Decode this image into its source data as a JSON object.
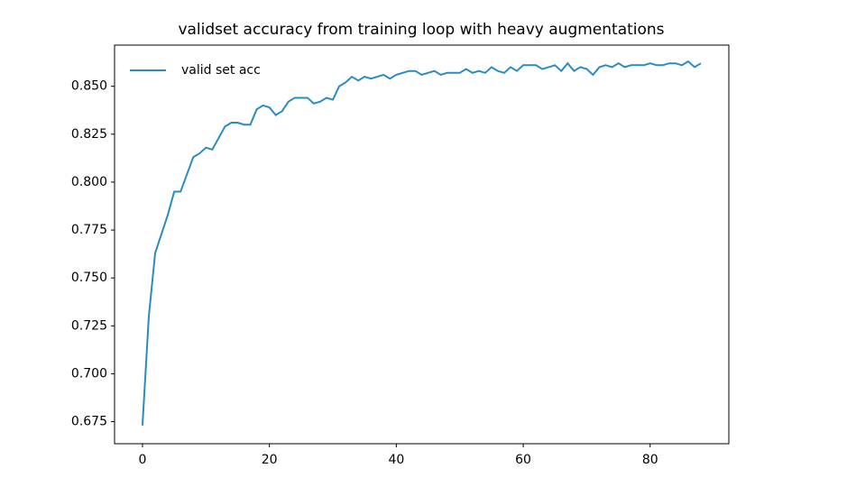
{
  "chart_data": {
    "type": "line",
    "title": "validset accuracy from training loop with heavy augmentations",
    "x": [
      0,
      1,
      2,
      3,
      4,
      5,
      6,
      7,
      8,
      9,
      10,
      11,
      12,
      13,
      14,
      15,
      16,
      17,
      18,
      19,
      20,
      21,
      22,
      23,
      24,
      25,
      26,
      27,
      28,
      29,
      30,
      31,
      32,
      33,
      34,
      35,
      36,
      37,
      38,
      39,
      40,
      41,
      42,
      43,
      44,
      45,
      46,
      47,
      48,
      49,
      50,
      51,
      52,
      53,
      54,
      55,
      56,
      57,
      58,
      59,
      60,
      61,
      62,
      63,
      64,
      65,
      66,
      67,
      68,
      69,
      70,
      71,
      72,
      73,
      74,
      75,
      76,
      77,
      78,
      79,
      80,
      81,
      82,
      83,
      84,
      85,
      86,
      87,
      88
    ],
    "series": [
      {
        "name": "valid set acc",
        "color": "#2a8bc0",
        "values": [
          0.673,
          0.73,
          0.763,
          0.773,
          0.783,
          0.795,
          0.795,
          0.804,
          0.813,
          0.815,
          0.818,
          0.817,
          0.823,
          0.829,
          0.831,
          0.831,
          0.83,
          0.83,
          0.838,
          0.84,
          0.839,
          0.835,
          0.837,
          0.842,
          0.844,
          0.844,
          0.844,
          0.841,
          0.842,
          0.844,
          0.843,
          0.85,
          0.852,
          0.855,
          0.853,
          0.855,
          0.854,
          0.855,
          0.856,
          0.854,
          0.856,
          0.857,
          0.858,
          0.858,
          0.856,
          0.857,
          0.858,
          0.856,
          0.857,
          0.857,
          0.857,
          0.859,
          0.857,
          0.858,
          0.857,
          0.86,
          0.858,
          0.857,
          0.86,
          0.858,
          0.861,
          0.861,
          0.861,
          0.859,
          0.86,
          0.861,
          0.858,
          0.862,
          0.858,
          0.86,
          0.859,
          0.856,
          0.86,
          0.861,
          0.86,
          0.862,
          0.86,
          0.861,
          0.861,
          0.861,
          0.862,
          0.861,
          0.861,
          0.862,
          0.862,
          0.861,
          0.863,
          0.86,
          0.862
        ]
      }
    ],
    "xlim": [
      -4.4,
      92.4
    ],
    "ylim": [
      0.6635,
      0.8715
    ],
    "xticks": [
      0,
      20,
      40,
      60,
      80
    ],
    "yticks": [
      {
        "value": 0.675,
        "label": "0.675"
      },
      {
        "value": 0.7,
        "label": "0.700"
      },
      {
        "value": 0.725,
        "label": "0.725"
      },
      {
        "value": 0.75,
        "label": "0.750"
      },
      {
        "value": 0.775,
        "label": "0.775"
      },
      {
        "value": 0.8,
        "label": "0.800"
      },
      {
        "value": 0.825,
        "label": "0.825"
      },
      {
        "value": 0.85,
        "label": "0.850"
      }
    ],
    "legend": "upper left",
    "grid": false
  }
}
